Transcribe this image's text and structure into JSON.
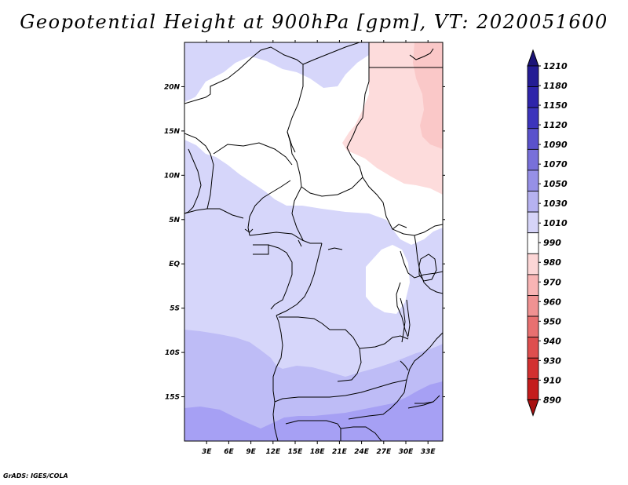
{
  "title": "Geopotential Height at 900hPa [gpm], VT: 2020051600",
  "credit": "GrADS: IGES/COLA",
  "map": {
    "lon_labels": [
      "3E",
      "6E",
      "9E",
      "12E",
      "15E",
      "18E",
      "21E",
      "24E",
      "27E",
      "30E",
      "33E"
    ],
    "lat_labels": [
      "20N",
      "15N",
      "10N",
      "5N",
      "EQ",
      "5S",
      "10S",
      "15S"
    ],
    "lon_range": [
      0,
      35
    ],
    "lat_range": [
      -20,
      25
    ]
  },
  "colorbar": {
    "levels": [
      "1210",
      "1180",
      "1150",
      "1120",
      "1090",
      "1070",
      "1050",
      "1030",
      "1010",
      "990",
      "980",
      "970",
      "960",
      "950",
      "940",
      "930",
      "910",
      "890"
    ],
    "colors": [
      "#1c1478",
      "#241c94",
      "#2e24aa",
      "#3c34bc",
      "#5a52cc",
      "#7870da",
      "#9690e6",
      "#b6b2f0",
      "#d6d4f8",
      "#ffffff",
      "#fcd6d6",
      "#f8b4b4",
      "#f09292",
      "#e87070",
      "#de4e4e",
      "#d23030",
      "#c41c1c",
      "#a81010"
    ]
  },
  "palette": {
    "h1030": "#d6d6fa",
    "h1050": "#bebcf6",
    "h1070": "#a6a0f4",
    "h990": "#ffffff",
    "h980": "#fddcdc",
    "h970": "#fac8c8",
    "border": "#000000"
  }
}
